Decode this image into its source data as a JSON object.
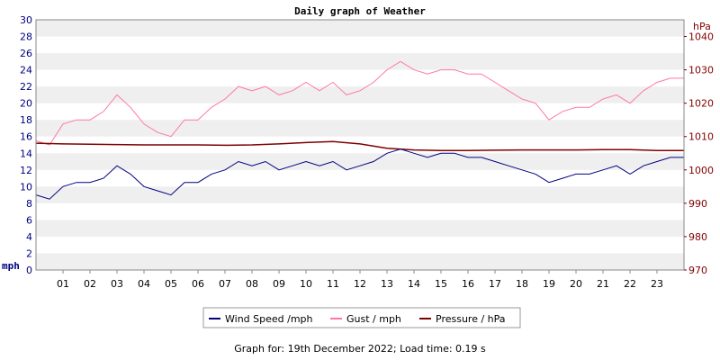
{
  "chart_data": {
    "type": "line",
    "title": "Daily graph of Weather",
    "left_axis": {
      "unit_label": "mph",
      "range": [
        0,
        30
      ],
      "ticks": [
        "0",
        "2",
        "4",
        "6",
        "8",
        "10",
        "12",
        "14",
        "16",
        "18",
        "20",
        "22",
        "24",
        "26",
        "28",
        "30"
      ]
    },
    "right_axis": {
      "unit_label": "hPa",
      "range": [
        970,
        1045
      ],
      "ticks": [
        "970",
        "980",
        "990",
        "1000",
        "1010",
        "1020",
        "1030",
        "1040"
      ]
    },
    "x_axis": {
      "range": [
        0,
        24
      ],
      "ticks": [
        "01",
        "02",
        "03",
        "04",
        "05",
        "06",
        "07",
        "08",
        "09",
        "10",
        "11",
        "12",
        "13",
        "14",
        "15",
        "16",
        "17",
        "18",
        "19",
        "20",
        "21",
        "22",
        "23"
      ]
    },
    "grid": "horizontal bands",
    "legend_position": "bottom",
    "series": [
      {
        "name": "Wind Speed /mph",
        "axis": "left",
        "color": "#000080",
        "x": [
          0,
          0.5,
          1,
          1.5,
          2,
          2.5,
          3,
          3.5,
          4,
          4.5,
          5,
          5.5,
          6,
          6.5,
          7,
          7.5,
          8,
          8.5,
          9,
          9.5,
          10,
          10.5,
          11,
          11.5,
          12,
          12.5,
          13,
          13.5,
          14,
          14.5,
          15,
          15.5,
          16,
          16.5,
          17,
          17.5,
          18,
          18.5,
          19,
          19.5,
          20,
          20.5,
          21,
          21.5,
          22,
          22.5,
          23,
          23.5,
          24
        ],
        "values": [
          9.0,
          8.5,
          10.0,
          10.5,
          10.5,
          11.0,
          12.5,
          11.5,
          10.0,
          9.5,
          9.0,
          10.5,
          10.5,
          11.5,
          12.0,
          13.0,
          12.5,
          13.0,
          12.0,
          12.5,
          13.0,
          12.5,
          13.0,
          12.0,
          12.5,
          13.0,
          14.0,
          14.5,
          14.0,
          13.5,
          14.0,
          14.0,
          13.5,
          13.5,
          13.0,
          12.5,
          12.0,
          11.5,
          10.5,
          11.0,
          11.5,
          11.5,
          12.0,
          12.5,
          11.5,
          12.5,
          13.0,
          13.5,
          13.5
        ]
      },
      {
        "name": "Gust / mph",
        "axis": "left",
        "color": "#ff77aa",
        "x": [
          0,
          0.5,
          1,
          1.5,
          2,
          2.5,
          3,
          3.5,
          4,
          4.5,
          5,
          5.5,
          6,
          6.5,
          7,
          7.5,
          8,
          8.5,
          9,
          9.5,
          10,
          10.5,
          11,
          11.5,
          12,
          12.5,
          13,
          13.5,
          14,
          14.5,
          15,
          15.5,
          16,
          16.5,
          17,
          17.5,
          18,
          18.5,
          19,
          19.5,
          20,
          20.5,
          21,
          21.5,
          22,
          22.5,
          23,
          23.5,
          24
        ],
        "values": [
          15.5,
          15.0,
          17.5,
          18.0,
          18.0,
          19.0,
          21.0,
          19.5,
          17.5,
          16.5,
          16.0,
          18.0,
          18.0,
          19.5,
          20.5,
          22.0,
          21.5,
          22.0,
          21.0,
          21.5,
          22.5,
          21.5,
          22.5,
          21.0,
          21.5,
          22.5,
          24.0,
          25.0,
          24.0,
          23.5,
          24.0,
          24.0,
          23.5,
          23.5,
          22.5,
          21.5,
          20.5,
          20.0,
          18.0,
          19.0,
          19.5,
          19.5,
          20.5,
          21.0,
          20.0,
          21.5,
          22.5,
          23.0,
          23.0
        ]
      },
      {
        "name": "Pressure / hPa",
        "axis": "right",
        "color": "#800000",
        "x": [
          0,
          1,
          2,
          3,
          4,
          5,
          6,
          7,
          8,
          9,
          10,
          11,
          12,
          13,
          14,
          15,
          16,
          17,
          18,
          19,
          20,
          21,
          22,
          23,
          24
        ],
        "values": [
          1008.0,
          1007.8,
          1007.7,
          1007.6,
          1007.5,
          1007.5,
          1007.5,
          1007.4,
          1007.5,
          1007.8,
          1008.2,
          1008.5,
          1007.8,
          1006.5,
          1006.0,
          1005.8,
          1005.8,
          1005.9,
          1006.0,
          1006.0,
          1006.0,
          1006.1,
          1006.1,
          1005.8,
          1005.8
        ]
      }
    ]
  },
  "footer": {
    "caption": "Graph for: 19th December 2022; Load time: 0.19 s"
  }
}
